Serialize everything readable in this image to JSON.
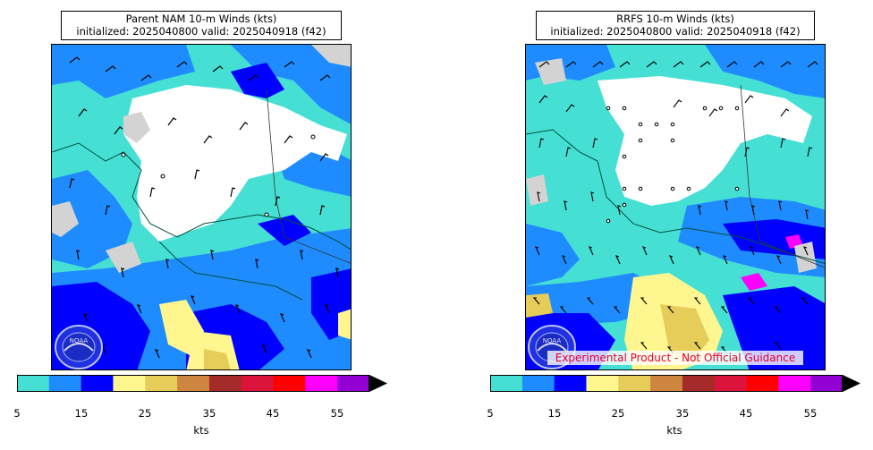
{
  "colors": {
    "bins": [
      "#45dfd4",
      "#1e8cff",
      "#0000ff",
      "#fff68f",
      "#e6cd5a",
      "#cd853f",
      "#a52a2a",
      "#dc143c",
      "#ff0000",
      "#ff00ff",
      "#9400d3"
    ],
    "land": "#d3d3d3",
    "calm": "#ffffff",
    "disclaimer": "#e8002a"
  },
  "colorbar": {
    "ticks": [
      "5",
      "15",
      "25",
      "35",
      "45",
      "55"
    ],
    "units": "kts",
    "extend": "max"
  },
  "left_panel": {
    "title_line1": "Parent NAM 10-m Winds (kts)",
    "title_line2": "initialized: 2025040800 valid: 2025040918 (f42)",
    "logo": "noaa-logo",
    "logo_text": "NOAA"
  },
  "right_panel": {
    "title_line1": "RRFS 10-m Winds (kts)",
    "title_line2": "initialized: 2025040800 valid: 2025040918 (f42)",
    "logo": "noaa-logo",
    "logo_text": "NOAA",
    "disclaimer": "Experimental Product - Not Official Guidance"
  }
}
